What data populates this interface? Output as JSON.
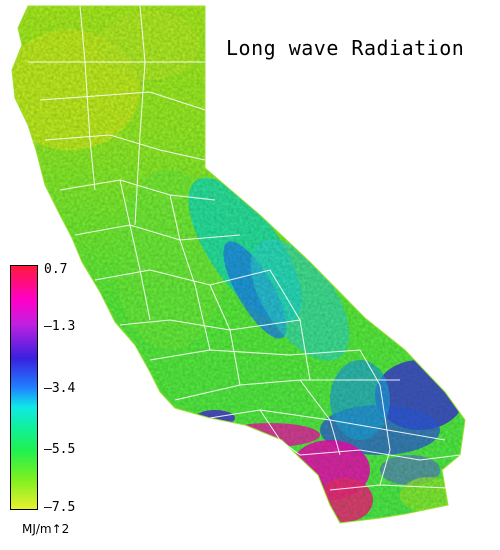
{
  "map": {
    "title": "Long wave Radiation",
    "legend": {
      "ticks": [
        "0.7",
        "–1.3",
        "–3.4",
        "–5.5",
        "–7.5"
      ],
      "unit": "MJ/m↑2",
      "colors": {
        "high": "#ff1a3c",
        "magenta": "#ff00c8",
        "blue": "#3a20e0",
        "cyan": "#10e8e8",
        "green": "#20f050",
        "low": "#e8f030"
      }
    }
  }
}
